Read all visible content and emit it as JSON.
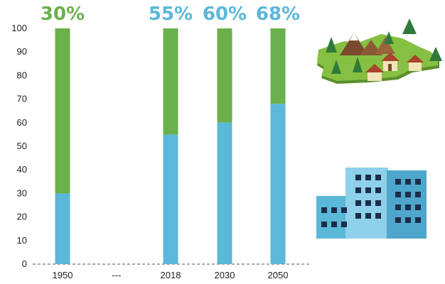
{
  "chart_data": {
    "type": "bar",
    "stacked": true,
    "categories": [
      "1950",
      "---",
      "2018",
      "2030",
      "2050"
    ],
    "series": [
      {
        "color": "#5bb8d8",
        "values": [
          30,
          null,
          55,
          60,
          68
        ]
      },
      {
        "color": "#6ab04c",
        "values": [
          70,
          null,
          45,
          40,
          32
        ]
      }
    ],
    "data_labels": [
      "30%",
      "",
      "55%",
      "60%",
      "68%"
    ],
    "data_label_colors": [
      "#6ab04c",
      "",
      "#5bb8d8",
      "#5bb8d8",
      "#5bb8d8"
    ],
    "y_ticks": [
      "0",
      "10",
      "20",
      "30",
      "40",
      "50",
      "60",
      "70",
      "80",
      "90",
      "100"
    ],
    "ylim": [
      0,
      100
    ],
    "grid": false,
    "baseline_style": "dashed",
    "icons": [
      "countryside-village-icon",
      "city-buildings-icon"
    ]
  }
}
